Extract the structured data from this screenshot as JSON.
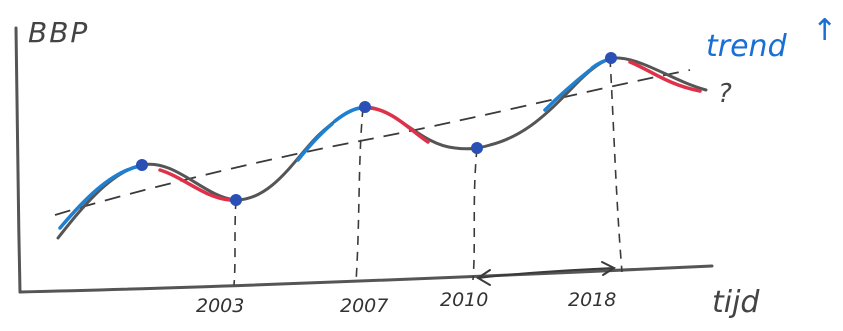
{
  "axes": {
    "y_label": "BBP",
    "x_label": "tijd"
  },
  "year_labels": [
    {
      "text": "2003"
    },
    {
      "text": "2007"
    },
    {
      "text": "2010"
    },
    {
      "text": "2018"
    }
  ],
  "trend": {
    "label": "trend",
    "arrow": "↑",
    "question": "?"
  },
  "colors": {
    "ink": "#555555",
    "dark": "#3a3a3a",
    "blue": "#1f7fd0",
    "red": "#e0314a",
    "dot": "#2a4fb5",
    "trend_text": "#1a6fd4"
  }
}
